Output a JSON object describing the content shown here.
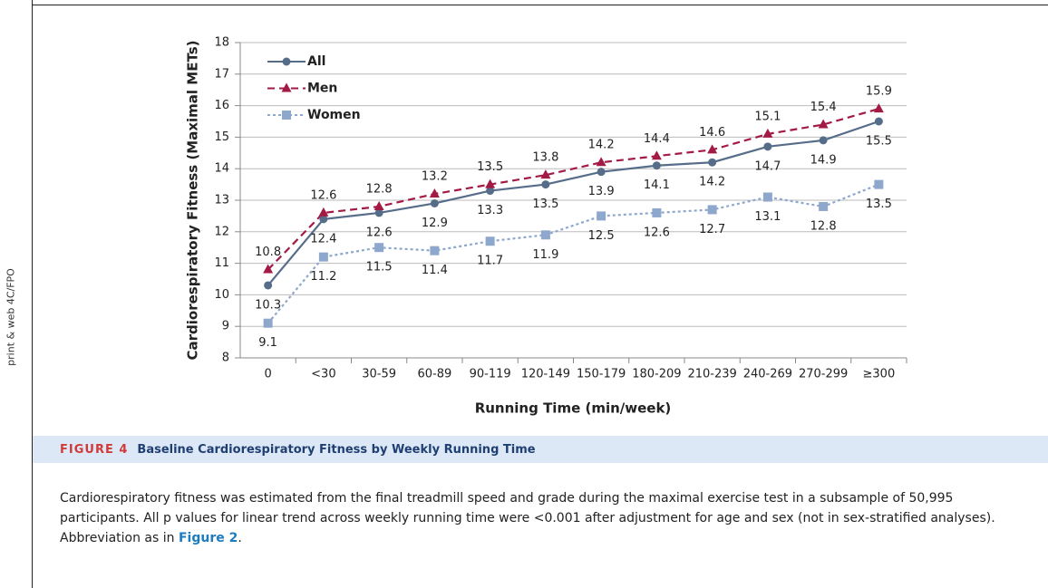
{
  "side_note": "print & web 4C/FPO",
  "figure": {
    "number": "FIGURE 4",
    "title": "Baseline Cardiorespiratory Fitness by Weekly Running Time"
  },
  "caption": {
    "before": "Cardiorespiratory fitness was estimated from the final treadmill speed and grade during the maximal exercise test in a subsample of 50,995 participants. All p values for linear trend across weekly running time were <0.001 after adjustment for age and sex (not in sex-stratified analyses). Abbreviation as in ",
    "link": "Figure 2",
    "after": "."
  },
  "chart_data": {
    "type": "line",
    "x_label": "Running Time (min/week)",
    "y_label": "Cardiorespiratory Fitness (Maximal METs)",
    "categories": [
      "0",
      "<30",
      "30-59",
      "60-89",
      "90-119",
      "120-149",
      "150-179",
      "180-209",
      "210-239",
      "240-269",
      "270-299",
      "≥300"
    ],
    "series": [
      {
        "name": "All",
        "color": "#566d8a",
        "dash": "solid",
        "marker": "circle",
        "values": [
          10.3,
          12.4,
          12.6,
          12.9,
          13.3,
          13.5,
          13.9,
          14.1,
          14.2,
          14.7,
          14.9,
          15.5
        ]
      },
      {
        "name": "Men",
        "color": "#a31a45",
        "dash": "dashed",
        "marker": "triangle",
        "values": [
          10.8,
          12.6,
          12.8,
          13.2,
          13.5,
          13.8,
          14.2,
          14.4,
          14.6,
          15.1,
          15.4,
          15.9
        ]
      },
      {
        "name": "Women",
        "color": "#8ea7cc",
        "dash": "dotted",
        "marker": "square",
        "values": [
          9.1,
          11.2,
          11.5,
          11.4,
          11.7,
          11.9,
          12.5,
          12.6,
          12.7,
          13.1,
          12.8,
          13.5
        ]
      }
    ],
    "ylim": [
      8,
      18
    ],
    "yticks": [
      8,
      9,
      10,
      11,
      12,
      13,
      14,
      15,
      16,
      17,
      18
    ],
    "grid": true,
    "legend": "upper left"
  }
}
